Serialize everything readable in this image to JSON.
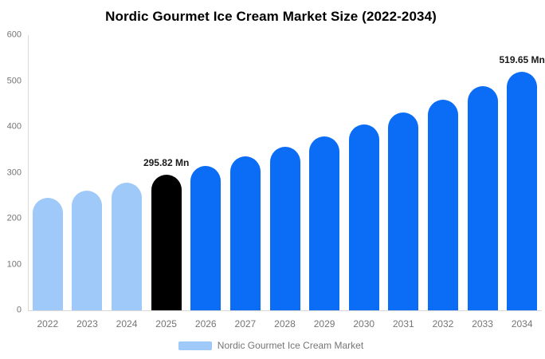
{
  "title": "Nordic Gourmet Ice Cream Market Size (2022-2034)",
  "legend": {
    "label": "Nordic Gourmet Ice Cream Market",
    "swatch_color": "#9ec9f9"
  },
  "colors": {
    "light_blue": "#9ec9f9",
    "blue": "#0b6cf5",
    "highlight_black": "#000000",
    "axis_line": "#d9d9d9",
    "axis_text": "#757575",
    "annotation_text": "#1a1a1a"
  },
  "chart_data": {
    "type": "bar",
    "title": "Nordic Gourmet Ice Cream Market Size (2022-2034)",
    "categories": [
      "2022",
      "2023",
      "2024",
      "2025",
      "2026",
      "2027",
      "2028",
      "2029",
      "2030",
      "2031",
      "2032",
      "2033",
      "2034"
    ],
    "values": [
      245.2,
      261.0,
      277.9,
      295.82,
      314.9,
      335.3,
      356.9,
      380.0,
      404.5,
      430.7,
      458.5,
      488.1,
      519.65
    ],
    "unit": "Mn",
    "xlabel": "",
    "ylabel": "",
    "ylim": [
      0,
      600
    ],
    "yticks": [
      0,
      100,
      200,
      300,
      400,
      500,
      600
    ],
    "grid": false,
    "legend_position": "bottom",
    "bar_colors": [
      "#9ec9f9",
      "#9ec9f9",
      "#9ec9f9",
      "#000000",
      "#0b6cf5",
      "#0b6cf5",
      "#0b6cf5",
      "#0b6cf5",
      "#0b6cf5",
      "#0b6cf5",
      "#0b6cf5",
      "#0b6cf5",
      "#0b6cf5"
    ],
    "annotations": [
      {
        "category": "2025",
        "text": "295.82 Mn"
      },
      {
        "category": "2034",
        "text": "519.65 Mn"
      }
    ]
  }
}
